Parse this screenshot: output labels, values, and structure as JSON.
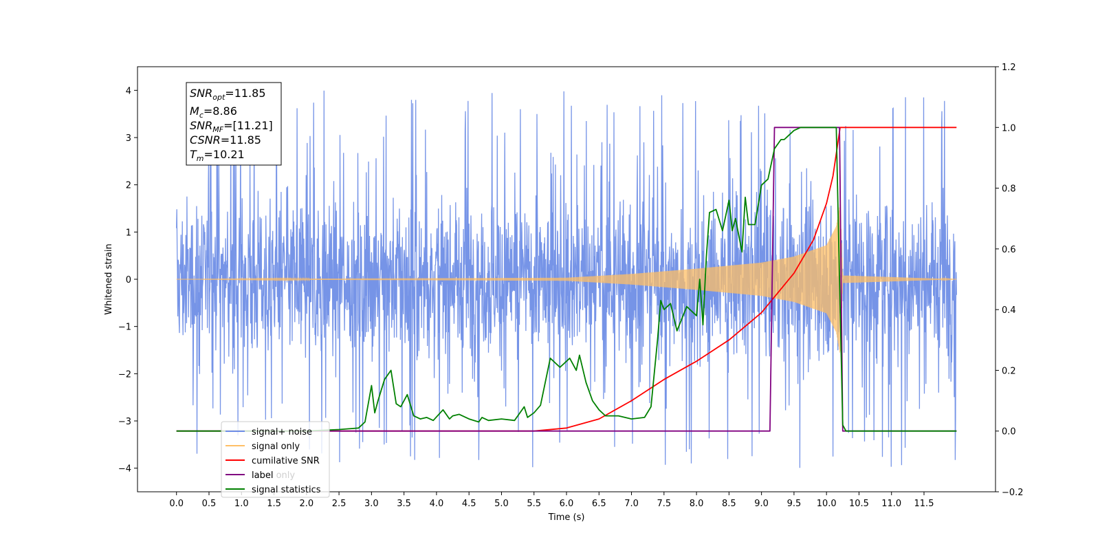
{
  "chart_data": {
    "type": "line",
    "xlabel": "Time (s)",
    "ylabel": "Whitened strain",
    "xlim": [
      -0.6,
      12.6
    ],
    "ylim": [
      -4.5,
      4.5
    ],
    "y2lim": [
      -0.2,
      1.2
    ],
    "x_ticks": [
      "0.0",
      "0.5",
      "1.0",
      "1.5",
      "2.0",
      "2.5",
      "3.0",
      "3.5",
      "4.0",
      "4.5",
      "5.0",
      "5.5",
      "6.0",
      "6.5",
      "7.0",
      "7.5",
      "8.0",
      "8.5",
      "9.0",
      "9.5",
      "10.0",
      "10.5",
      "11.0",
      "11.5"
    ],
    "y_ticks": [
      "−4",
      "−3",
      "−2",
      "−1",
      "0",
      "1",
      "2",
      "3",
      "4"
    ],
    "y2_ticks": [
      "−0.2",
      "0.0",
      "0.2",
      "0.4",
      "0.6",
      "0.8",
      "1.0",
      "1.2"
    ],
    "annotation": [
      {
        "base": "SNR",
        "sub": "opt",
        "value": "=11.85"
      },
      {
        "base": "M",
        "sub": "c",
        "value": "=8.86"
      },
      {
        "base": "SNR",
        "sub": "MF",
        "value": "=[11.21]"
      },
      {
        "base": "CSNR",
        "sub": "",
        "value": "=11.85"
      },
      {
        "base": "T",
        "sub": "m",
        "value": "=10.21"
      }
    ],
    "series": [
      {
        "name": "signal+ noise",
        "color": "#6f8ee6",
        "axis": "left",
        "description_x_range": [
          0.0,
          12.0
        ],
        "y_range": [
          -4.1,
          4.1
        ]
      },
      {
        "name": "signal only",
        "color": "#ffbf66",
        "axis": "left",
        "envelope": {
          "x": [
            0.0,
            6.0,
            7.0,
            8.0,
            9.0,
            9.5,
            10.0,
            10.15,
            10.21,
            10.25,
            12.0
          ],
          "amp": [
            0.0,
            0.02,
            0.07,
            0.14,
            0.22,
            0.3,
            0.45,
            0.7,
            1.0,
            0.05,
            0.0
          ]
        }
      },
      {
        "name": "cumilative SNR",
        "color": "#ff0000",
        "axis": "right",
        "x": [
          0.0,
          5.5,
          6.0,
          6.5,
          7.0,
          7.5,
          8.0,
          8.5,
          9.0,
          9.5,
          9.8,
          10.0,
          10.1,
          10.21,
          12.0
        ],
        "y": [
          0.0,
          0.0,
          0.01,
          0.04,
          0.1,
          0.17,
          0.23,
          0.3,
          0.39,
          0.52,
          0.63,
          0.75,
          0.84,
          1.0,
          1.0
        ]
      },
      {
        "name": "label",
        "color": "#800080",
        "axis": "right",
        "x": [
          0.0,
          9.13,
          9.2,
          10.2,
          10.25,
          10.3,
          12.0
        ],
        "y": [
          0.0,
          0.0,
          1.0,
          1.0,
          0.0,
          0.0,
          0.0
        ]
      },
      {
        "name": "label only",
        "color": "#cccccc",
        "axis": "right",
        "x": [],
        "y": []
      },
      {
        "name": "signal statistics",
        "color": "#008000",
        "axis": "right",
        "x": [
          0.0,
          2.0,
          2.5,
          2.8,
          2.9,
          3.0,
          3.05,
          3.1,
          3.2,
          3.3,
          3.38,
          3.45,
          3.55,
          3.65,
          3.75,
          3.85,
          3.95,
          4.1,
          4.2,
          4.25,
          4.35,
          4.5,
          4.65,
          4.7,
          4.8,
          5.0,
          5.2,
          5.35,
          5.4,
          5.5,
          5.6,
          5.75,
          5.9,
          6.05,
          6.15,
          6.2,
          6.3,
          6.4,
          6.5,
          6.6,
          6.8,
          7.0,
          7.2,
          7.3,
          7.4,
          7.45,
          7.5,
          7.6,
          7.7,
          7.85,
          8.0,
          8.05,
          8.1,
          8.15,
          8.2,
          8.3,
          8.4,
          8.5,
          8.55,
          8.6,
          8.7,
          8.75,
          8.8,
          8.9,
          9.0,
          9.1,
          9.2,
          9.3,
          9.35,
          9.5,
          9.6,
          9.8,
          10.0,
          10.15,
          10.2,
          10.25,
          10.3,
          12.0
        ],
        "y": [
          0.0,
          0.0,
          0.005,
          0.01,
          0.03,
          0.15,
          0.06,
          0.1,
          0.17,
          0.2,
          0.09,
          0.08,
          0.12,
          0.05,
          0.04,
          0.045,
          0.035,
          0.07,
          0.04,
          0.05,
          0.055,
          0.04,
          0.03,
          0.045,
          0.035,
          0.04,
          0.035,
          0.08,
          0.045,
          0.06,
          0.085,
          0.24,
          0.21,
          0.24,
          0.2,
          0.25,
          0.16,
          0.1,
          0.07,
          0.05,
          0.05,
          0.04,
          0.045,
          0.08,
          0.3,
          0.43,
          0.4,
          0.42,
          0.33,
          0.41,
          0.38,
          0.5,
          0.35,
          0.57,
          0.72,
          0.73,
          0.66,
          0.76,
          0.66,
          0.7,
          0.59,
          0.77,
          0.68,
          0.68,
          0.81,
          0.83,
          0.93,
          0.96,
          0.96,
          0.99,
          1.0,
          1.0,
          1.0,
          1.0,
          0.5,
          0.02,
          0.0,
          0.0
        ]
      }
    ],
    "legend": {
      "placement": "lower-left",
      "entries": [
        "signal+ noise",
        "signal only",
        "cumilative SNR",
        "label",
        "label only",
        "signal statistics"
      ]
    }
  }
}
